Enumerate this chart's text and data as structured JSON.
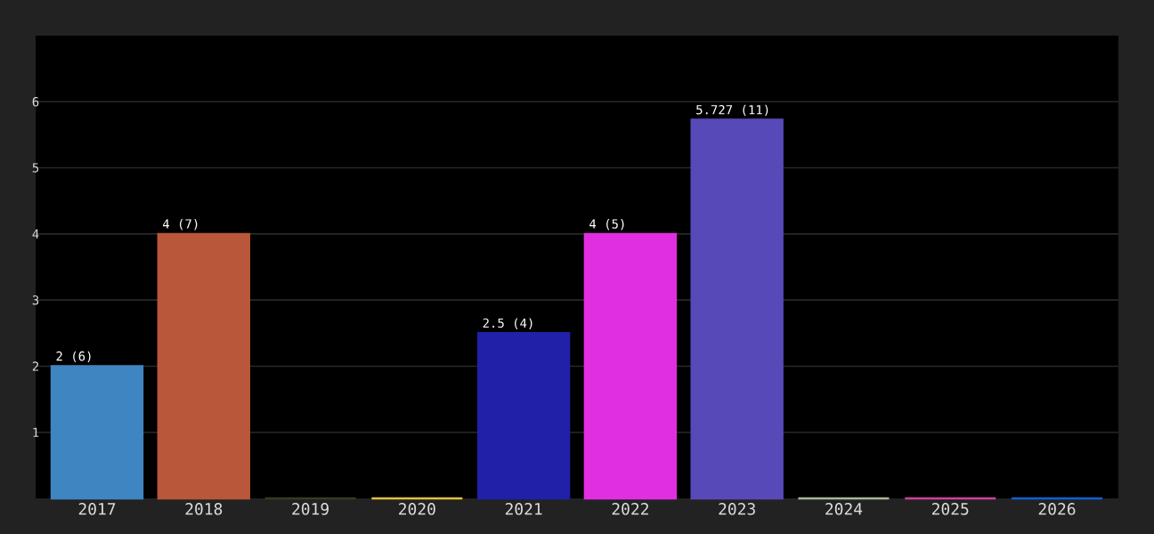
{
  "chart_data": {
    "type": "bar",
    "categories": [
      "2017",
      "2018",
      "2019",
      "2020",
      "2021",
      "2022",
      "2023",
      "2024",
      "2025",
      "2026"
    ],
    "values": [
      2,
      4,
      0,
      0,
      2.5,
      4,
      5.727,
      0,
      0,
      0
    ],
    "colors": [
      "#3f85c2",
      "#b9573a",
      "#3a3a20",
      "#e0c040",
      "#2020a8",
      "#e02fe0",
      "#5849b8",
      "#a8b898",
      "#d040a0",
      "#1060d0"
    ],
    "value_labels": [
      "2 (6)",
      "4 (7)",
      null,
      null,
      "2.5 (4)",
      "4 (5)",
      "5.727 (11)",
      null,
      null,
      null
    ],
    "ylim": [
      0,
      7
    ],
    "yticks": [
      1,
      2,
      3,
      4,
      5,
      6
    ],
    "grid": "y"
  }
}
